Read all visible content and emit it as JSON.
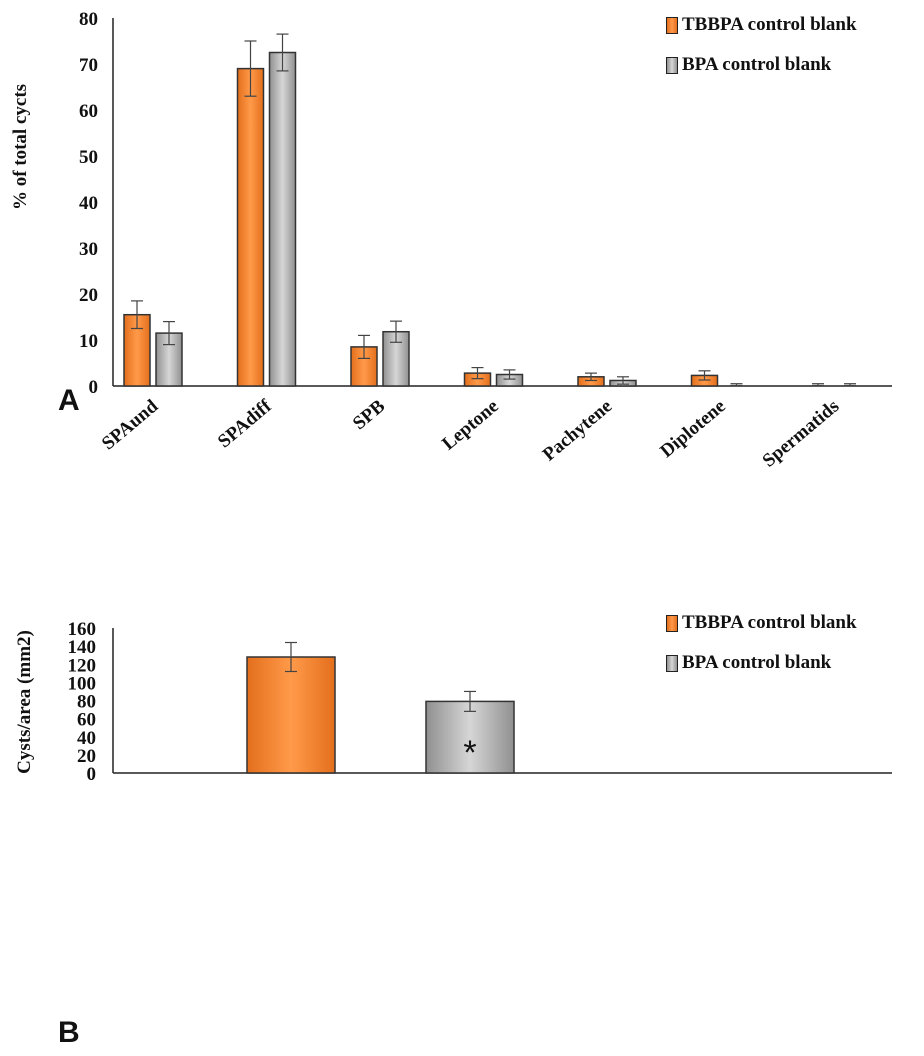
{
  "colors": {
    "tbbpa": "#ee8130",
    "tbbpa_light": "#f9a766",
    "bpa": "#a8a8a8",
    "bpa_light": "#d2d2d2",
    "edge": "#333333"
  },
  "chart_data": [
    {
      "panel": "A",
      "type": "bar",
      "ylabel": "% of total cycts",
      "ylim": [
        0,
        80
      ],
      "yticks": [
        "0",
        "10",
        "20",
        "30",
        "40",
        "50",
        "60",
        "70",
        "80"
      ],
      "categories": [
        "SPAund",
        "SPAdiff",
        "SPB",
        "Leptone",
        "Pachytene",
        "Diplotene",
        "Spermatids"
      ],
      "legend_position": "top-right",
      "series": [
        {
          "name": "TBBPA control blank",
          "color": "#ee8130",
          "values": [
            15.5,
            69,
            8.5,
            2.8,
            2,
            2.3,
            0
          ],
          "errors": [
            3,
            6,
            2.5,
            1.2,
            0.8,
            1.0,
            0.5
          ]
        },
        {
          "name": "BPA control blank",
          "color": "#a8a8a8",
          "values": [
            11.5,
            72.5,
            11.8,
            2.5,
            1.2,
            0,
            0
          ],
          "errors": [
            2.5,
            4,
            2.3,
            1.0,
            0.8,
            0.5,
            0.5
          ]
        }
      ]
    },
    {
      "panel": "B",
      "type": "bar",
      "ylabel": "Cysts/area (mm2)",
      "ylim": [
        0,
        160
      ],
      "yticks": [
        "0",
        "20",
        "40",
        "60",
        "80",
        "100",
        "120",
        "140",
        "160"
      ],
      "legend_position": "top-right",
      "series": [
        {
          "name": "TBBPA control blank",
          "color": "#ee8130",
          "value": 128,
          "error": 16
        },
        {
          "name": "BPA control blank",
          "color": "#a8a8a8",
          "value": 79,
          "error": 11
        }
      ],
      "annotation": "*"
    }
  ]
}
